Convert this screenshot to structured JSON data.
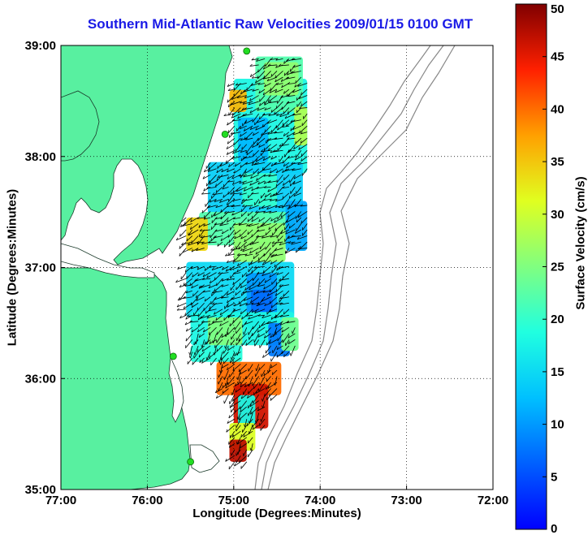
{
  "title": "Southern Mid-Atlantic Raw Velocities 2009/01/15 0100 GMT",
  "axes": {
    "xlabel": "Longitude (Degrees:Minutes)",
    "ylabel": "Latitude (Degrees:Minutes)",
    "x_ticks": [
      "77:00",
      "76:00",
      "75:00",
      "74:00",
      "73:00",
      "72:00"
    ],
    "y_ticks": [
      "39:00",
      "38:00",
      "37:00",
      "36:00",
      "35:00"
    ],
    "xlim": [
      -77,
      -72
    ],
    "ylim": [
      35,
      39
    ],
    "grid": "dotted"
  },
  "colorbar": {
    "label": "Surface Velocity (cm/s)",
    "min": 0,
    "max": 50,
    "ticks": [
      "0",
      "5",
      "10",
      "15",
      "20",
      "25",
      "30",
      "35",
      "40",
      "45",
      "50"
    ],
    "colormap": "jet"
  },
  "colors": {
    "land": "#58f0a0",
    "title": "#1a1ae6",
    "station_marker": "#22dd22",
    "bathymetry": "#888888"
  },
  "stations": [
    {
      "lon": -74.85,
      "lat": 38.95
    },
    {
      "lon": -75.1,
      "lat": 38.2
    },
    {
      "lon": -75.7,
      "lat": 36.2
    },
    {
      "lon": -75.5,
      "lat": 35.25
    }
  ],
  "regions": [
    {
      "lon0": -75.0,
      "lon1": -74.15,
      "lat0": 37.85,
      "lat1": 38.7,
      "v": 18
    },
    {
      "lon0": -74.75,
      "lon1": -74.2,
      "lat0": 38.4,
      "lat1": 38.9,
      "v": 22
    },
    {
      "lon0": -74.65,
      "lon1": -74.25,
      "lat0": 38.55,
      "lat1": 38.85,
      "v": 26
    },
    {
      "lon0": -74.3,
      "lon1": -74.15,
      "lat0": 38.1,
      "lat1": 38.45,
      "v": 28
    },
    {
      "lon0": -74.95,
      "lon1": -74.6,
      "lat0": 37.95,
      "lat1": 38.35,
      "v": 12
    },
    {
      "lon0": -75.05,
      "lon1": -74.85,
      "lat0": 38.4,
      "lat1": 38.6,
      "v": 36
    },
    {
      "lon0": -75.3,
      "lon1": -74.2,
      "lat0": 37.45,
      "lat1": 37.95,
      "v": 14
    },
    {
      "lon0": -74.9,
      "lon1": -74.5,
      "lat0": 37.55,
      "lat1": 37.85,
      "v": 20
    },
    {
      "lon0": -75.4,
      "lon1": -74.3,
      "lat0": 37.2,
      "lat1": 37.5,
      "v": 22
    },
    {
      "lon0": -75.0,
      "lon1": -74.4,
      "lat0": 37.05,
      "lat1": 37.4,
      "v": 26
    },
    {
      "lon0": -74.4,
      "lon1": -74.15,
      "lat0": 37.15,
      "lat1": 37.6,
      "v": 11
    },
    {
      "lon0": -75.55,
      "lon1": -75.3,
      "lat0": 37.15,
      "lat1": 37.45,
      "v": 34
    },
    {
      "lon0": -75.55,
      "lon1": -74.3,
      "lat0": 36.55,
      "lat1": 37.05,
      "v": 15
    },
    {
      "lon0": -74.85,
      "lon1": -74.5,
      "lat0": 36.45,
      "lat1": 36.95,
      "v": 10
    },
    {
      "lon0": -74.8,
      "lon1": -74.55,
      "lat0": 36.5,
      "lat1": 36.8,
      "v": 7
    },
    {
      "lon0": -75.5,
      "lon1": -74.3,
      "lat0": 36.3,
      "lat1": 36.6,
      "v": 18
    },
    {
      "lon0": -75.3,
      "lon1": -74.9,
      "lat0": 36.3,
      "lat1": 36.55,
      "v": 25
    },
    {
      "lon0": -74.6,
      "lon1": -74.35,
      "lat0": 36.2,
      "lat1": 36.5,
      "v": 8
    },
    {
      "lon0": -74.45,
      "lon1": -74.25,
      "lat0": 36.25,
      "lat1": 36.55,
      "v": 24
    },
    {
      "lon0": -75.5,
      "lon1": -74.9,
      "lat0": 36.15,
      "lat1": 36.3,
      "v": 19
    },
    {
      "lon0": -75.2,
      "lon1": -74.45,
      "lat0": 35.85,
      "lat1": 36.15,
      "v": 40
    },
    {
      "lon0": -75.0,
      "lon1": -74.6,
      "lat0": 35.55,
      "lat1": 35.95,
      "v": 46
    },
    {
      "lon0": -74.95,
      "lon1": -74.75,
      "lat0": 35.55,
      "lat1": 35.85,
      "v": 18
    },
    {
      "lon0": -75.05,
      "lon1": -74.75,
      "lat0": 35.35,
      "lat1": 35.6,
      "v": 31
    },
    {
      "lon0": -75.05,
      "lon1": -74.85,
      "lat0": 35.25,
      "lat1": 35.45,
      "v": 47
    }
  ]
}
